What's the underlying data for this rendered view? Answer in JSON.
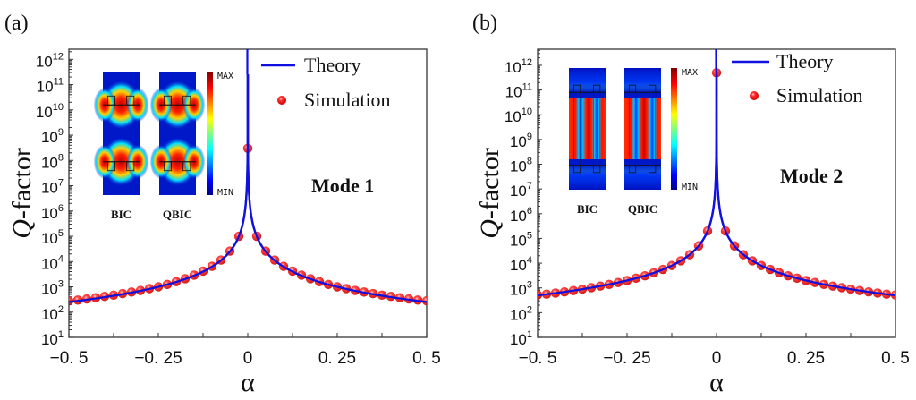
{
  "chart_data": [
    {
      "type": "line",
      "panel_label": "(a)",
      "title": "",
      "annotation": "Mode 1",
      "xlabel": "α",
      "ylabel_italic": "Q",
      "ylabel_rest": "-factor",
      "xlim": [
        -0.5,
        0.5
      ],
      "ylim_log10": [
        1,
        12.4
      ],
      "yscale": "log",
      "x_ticks": [
        -0.5,
        -0.25,
        0,
        0.25,
        0.5
      ],
      "x_tick_labels": [
        "−0. 5",
        "−0. 25",
        "0",
        "0. 25",
        "0. 5"
      ],
      "y_tick_exponents": [
        1,
        2,
        3,
        4,
        5,
        6,
        7,
        8,
        9,
        10,
        11,
        12
      ],
      "y_tick_base": "10",
      "legend": [
        "Theory",
        "Simulation"
      ],
      "legend_position": "top-right",
      "series": [
        {
          "name": "Theory",
          "kind": "line",
          "color": "#1010e0",
          "model": "Q = 62.5 / α²"
        },
        {
          "name": "Simulation",
          "kind": "scatter",
          "color": "#e01010",
          "x": [
            -0.5,
            -0.475,
            -0.45,
            -0.425,
            -0.4,
            -0.375,
            -0.35,
            -0.325,
            -0.3,
            -0.275,
            -0.25,
            -0.225,
            -0.2,
            -0.175,
            -0.15,
            -0.125,
            -0.1,
            -0.075,
            -0.05,
            -0.025,
            0,
            0.025,
            0.05,
            0.075,
            0.1,
            0.125,
            0.15,
            0.175,
            0.2,
            0.225,
            0.25,
            0.275,
            0.3,
            0.325,
            0.35,
            0.375,
            0.4,
            0.425,
            0.45,
            0.475,
            0.5
          ],
          "y": [
            280,
            300,
            330,
            370,
            420,
            470,
            540,
            620,
            720,
            850,
            1000,
            1240,
            1600,
            2100,
            2900,
            4200,
            6500,
            11500,
            26000,
            100000,
            300000000,
            100000,
            26000,
            11500,
            6500,
            4200,
            2900,
            2100,
            1600,
            1240,
            1000,
            850,
            720,
            620,
            540,
            470,
            420,
            370,
            330,
            300,
            280
          ]
        }
      ],
      "inset": {
        "labels": [
          "BIC",
          "QBIC"
        ],
        "colorbar_max": "MAX",
        "colorbar_min": "MIN"
      }
    },
    {
      "type": "line",
      "panel_label": "(b)",
      "title": "",
      "annotation": "Mode 2",
      "xlabel": "α",
      "ylabel_italic": "Q",
      "ylabel_rest": "-factor",
      "xlim": [
        -0.5,
        0.5
      ],
      "ylim_log10": [
        1,
        12.65
      ],
      "yscale": "log",
      "x_ticks": [
        -0.5,
        -0.25,
        0,
        0.25,
        0.5
      ],
      "x_tick_labels": [
        "−0. 5",
        "−0. 25",
        "0",
        "0. 25",
        "0. 5"
      ],
      "y_tick_exponents": [
        1,
        2,
        3,
        4,
        5,
        6,
        7,
        8,
        9,
        10,
        11,
        12
      ],
      "y_tick_base": "10",
      "legend": [
        "Theory",
        "Simulation"
      ],
      "legend_position": "top-right",
      "series": [
        {
          "name": "Theory",
          "kind": "line",
          "color": "#1010e0",
          "model": "Q = 125 / α²"
        },
        {
          "name": "Simulation",
          "kind": "scatter",
          "color": "#e01010",
          "x": [
            -0.5,
            -0.475,
            -0.45,
            -0.425,
            -0.4,
            -0.375,
            -0.35,
            -0.325,
            -0.3,
            -0.275,
            -0.25,
            -0.225,
            -0.2,
            -0.175,
            -0.15,
            -0.125,
            -0.1,
            -0.075,
            -0.05,
            -0.025,
            0,
            0.025,
            0.05,
            0.075,
            0.1,
            0.125,
            0.15,
            0.175,
            0.2,
            0.225,
            0.25,
            0.275,
            0.3,
            0.325,
            0.35,
            0.375,
            0.4,
            0.425,
            0.45,
            0.475,
            0.5
          ],
          "y": [
            520,
            560,
            620,
            690,
            780,
            890,
            1020,
            1180,
            1390,
            1650,
            2000,
            2470,
            3100,
            4100,
            5600,
            8000,
            12500,
            22000,
            50000,
            200000,
            500000000000,
            200000,
            50000,
            22000,
            12500,
            8000,
            5600,
            4100,
            3100,
            2470,
            2000,
            1650,
            1390,
            1180,
            1020,
            890,
            780,
            690,
            620,
            560,
            520
          ]
        }
      ],
      "inset": {
        "labels": [
          "BIC",
          "QBIC"
        ],
        "colorbar_max": "MAX",
        "colorbar_min": "MIN"
      }
    }
  ]
}
